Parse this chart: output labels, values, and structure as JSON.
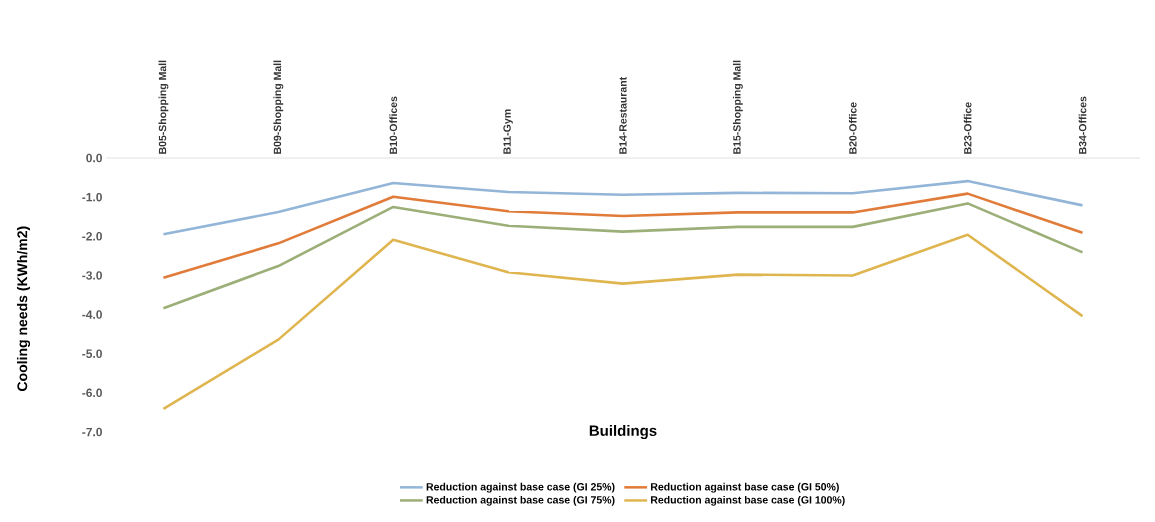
{
  "chart_data": {
    "type": "line",
    "xlabel": "Buildings",
    "ylabel": "Cooling needs (KWh/m2)",
    "categories": [
      "B05-Shopping Mall",
      "B09-Shopping Mall",
      "B10-Offices",
      "B11-Gym",
      "B14-Restaurant",
      "B15-Shopping Mall",
      "B20-Office",
      "B23-Office",
      "B34-Offices"
    ],
    "series": [
      {
        "name": "Reduction against base case (GI 25%)",
        "color": "#92b5d8",
        "values": [
          -1.95,
          -1.38,
          -0.64,
          -0.87,
          -0.94,
          -0.89,
          -0.9,
          -0.59,
          -1.21
        ]
      },
      {
        "name": "Reduction against base case (GI 50%)",
        "color": "#e07b39",
        "values": [
          -3.06,
          -2.18,
          -0.99,
          -1.36,
          -1.48,
          -1.39,
          -1.39,
          -0.91,
          -1.91
        ]
      },
      {
        "name": "Reduction against base case (GI 75%)",
        "color": "#9caf78",
        "values": [
          -3.84,
          -2.76,
          -1.25,
          -1.73,
          -1.88,
          -1.76,
          -1.76,
          -1.16,
          -2.41
        ]
      },
      {
        "name": "Reduction against base case (GI 100%)",
        "color": "#dfb54f",
        "values": [
          -6.41,
          -4.64,
          -2.09,
          -2.92,
          -3.21,
          -2.98,
          -3.0,
          -1.96,
          -4.04
        ]
      }
    ],
    "ylim": [
      -7,
      0
    ],
    "yticks": [
      {
        "value": 0,
        "label": "0.0"
      },
      {
        "value": -1,
        "label": "-1.0"
      },
      {
        "value": -2,
        "label": "-2.0"
      },
      {
        "value": -3,
        "label": "-3.0"
      },
      {
        "value": -4,
        "label": "-4.0"
      },
      {
        "value": -5,
        "label": "-5.0"
      },
      {
        "value": -6,
        "label": "-6.0"
      },
      {
        "value": -7,
        "label": "-7.0"
      }
    ],
    "legend": "bottom",
    "marker": "none",
    "line_style": "solid",
    "grid": false
  }
}
